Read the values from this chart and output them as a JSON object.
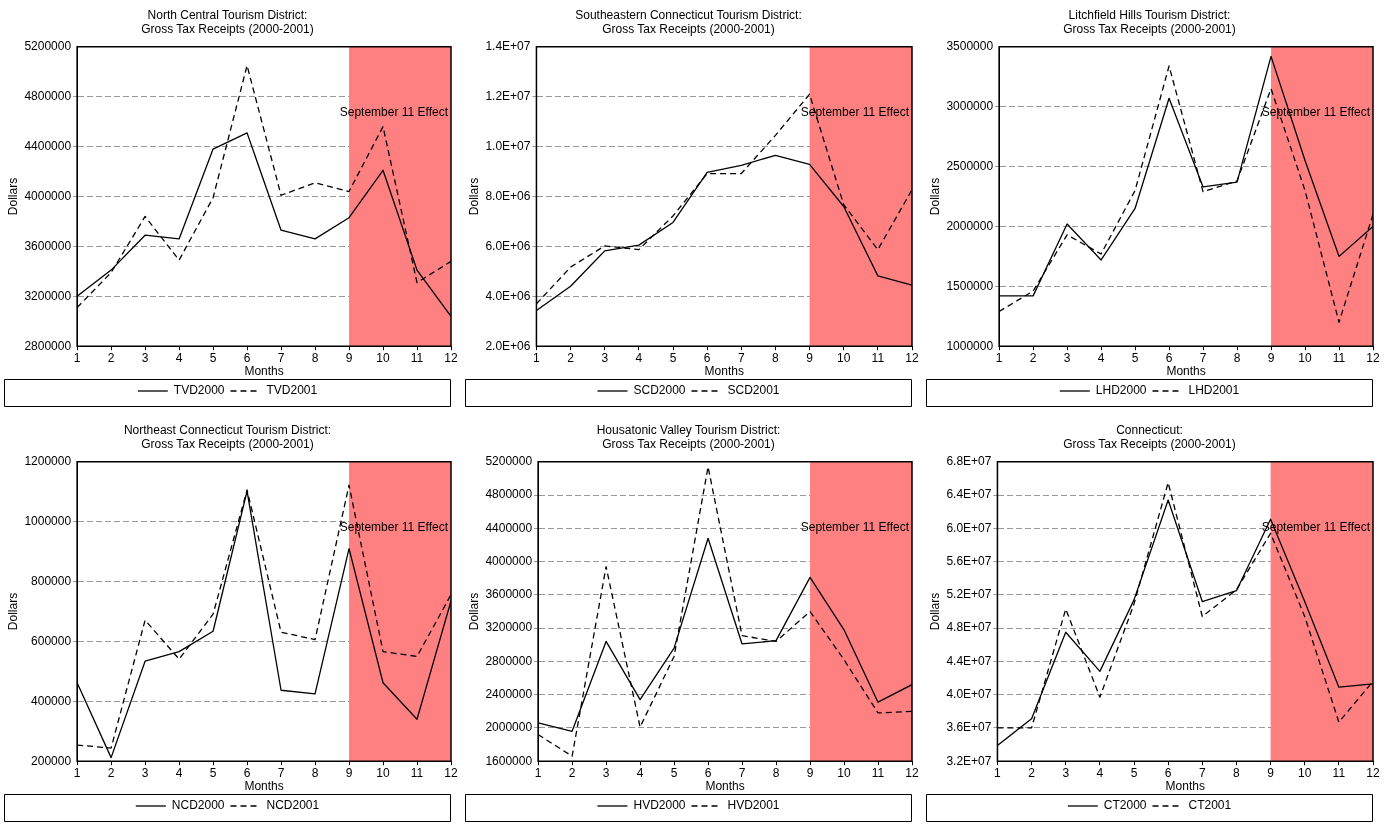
{
  "chart_data": [
    {
      "type": "line",
      "title": "North Central Tourism District:\nGross Tax Receipts (2000-2001)",
      "xlabel": "Months",
      "ylabel": "Dollars",
      "x": [
        1,
        2,
        3,
        4,
        5,
        6,
        7,
        8,
        9,
        10,
        11,
        12
      ],
      "xlim": [
        1,
        12
      ],
      "xticks": [
        1,
        2,
        3,
        4,
        5,
        6,
        7,
        8,
        9,
        10,
        11,
        12
      ],
      "ylim": [
        2800000,
        5200000
      ],
      "yticks": [
        2800000,
        3200000,
        3600000,
        4000000,
        4400000,
        4800000,
        5200000
      ],
      "grid": "y",
      "legend": "bottom",
      "bands": [
        {
          "axis": "x",
          "from": 9,
          "to": 12,
          "label": "September 11 Effect",
          "color": "#ff8080"
        }
      ],
      "series": [
        {
          "name": "TVD2000",
          "color": "#000000",
          "line_style": "solid",
          "values": [
            3200000,
            3410000,
            3690000,
            3660000,
            4380000,
            4510000,
            3730000,
            3660000,
            3830000,
            4210000,
            3410000,
            3040000
          ]
        },
        {
          "name": "TVD2001",
          "color": "#000000",
          "line_style": "dashed",
          "values": [
            3110000,
            3390000,
            3840000,
            3490000,
            3990000,
            5050000,
            4010000,
            4110000,
            4040000,
            4560000,
            3310000,
            3480000
          ]
        }
      ]
    },
    {
      "type": "line",
      "title": "Southeastern Connecticut Tourism District:\nGross Tax Receipts (2000-2001)",
      "xlabel": "Months",
      "ylabel": "Dollars",
      "x": [
        1,
        2,
        3,
        4,
        5,
        6,
        7,
        8,
        9,
        10,
        11,
        12
      ],
      "xlim": [
        1,
        12
      ],
      "xticks": [
        1,
        2,
        3,
        4,
        5,
        6,
        7,
        8,
        9,
        10,
        11,
        12
      ],
      "ylim": [
        2000000,
        14000000
      ],
      "yticks": [
        {
          "value": 2000000,
          "label": "2.0E+06"
        },
        {
          "value": 4000000,
          "label": "4.0E+06"
        },
        {
          "value": 6000000,
          "label": "6.0E+06"
        },
        {
          "value": 8000000,
          "label": "8.0E+06"
        },
        {
          "value": 10000000,
          "label": "1.0E+07"
        },
        {
          "value": 12000000,
          "label": "1.2E+07"
        },
        {
          "value": 14000000,
          "label": "1.4E+07"
        }
      ],
      "grid": "y",
      "legend": "bottom",
      "bands": [
        {
          "axis": "x",
          "from": 9,
          "to": 12,
          "label": "September 11 Effect",
          "color": "#ff8080"
        }
      ],
      "series": [
        {
          "name": "SCD2000",
          "color": "#000000",
          "line_style": "solid",
          "values": [
            3430000,
            4400000,
            5820000,
            6050000,
            6960000,
            8970000,
            9250000,
            9650000,
            9290000,
            7600000,
            4820000,
            4450000
          ]
        },
        {
          "name": "SCD2001",
          "color": "#000000",
          "line_style": "dashed",
          "values": [
            3700000,
            5170000,
            6020000,
            5870000,
            7220000,
            8920000,
            8920000,
            10450000,
            12100000,
            7670000,
            5870000,
            8270000
          ]
        }
      ]
    },
    {
      "type": "line",
      "title": "Litchfield Hills Tourism District:\nGross Tax Receipts (2000-2001)",
      "xlabel": "Months",
      "ylabel": "Dollars",
      "x": [
        1,
        2,
        3,
        4,
        5,
        6,
        7,
        8,
        9,
        10,
        11,
        12
      ],
      "xlim": [
        1,
        12
      ],
      "xticks": [
        1,
        2,
        3,
        4,
        5,
        6,
        7,
        8,
        9,
        10,
        11,
        12
      ],
      "ylim": [
        1000000,
        3500000
      ],
      "yticks": [
        1000000,
        1500000,
        2000000,
        2500000,
        3000000,
        3500000
      ],
      "grid": "y",
      "legend": "bottom",
      "bands": [
        {
          "axis": "x",
          "from": 9,
          "to": 12,
          "label": "September 11 Effect",
          "color": "#ff8080"
        }
      ],
      "series": [
        {
          "name": "LHD2000",
          "color": "#000000",
          "line_style": "solid",
          "values": [
            1420000,
            1420000,
            2020000,
            1720000,
            2150000,
            3070000,
            2330000,
            2370000,
            3420000,
            2550000,
            1750000,
            2000000
          ]
        },
        {
          "name": "LHD2001",
          "color": "#000000",
          "line_style": "dashed",
          "values": [
            1290000,
            1460000,
            1930000,
            1770000,
            2300000,
            3340000,
            2290000,
            2380000,
            3150000,
            2300000,
            1200000,
            2100000
          ]
        }
      ]
    },
    {
      "type": "line",
      "title": "Northeast Connecticut Tourism District:\nGross Tax Receipts (2000-2001)",
      "xlabel": "Months",
      "ylabel": "Dollars",
      "x": [
        1,
        2,
        3,
        4,
        5,
        6,
        7,
        8,
        9,
        10,
        11,
        12
      ],
      "xlim": [
        1,
        12
      ],
      "xticks": [
        1,
        2,
        3,
        4,
        5,
        6,
        7,
        8,
        9,
        10,
        11,
        12
      ],
      "ylim": [
        200000,
        1200000
      ],
      "yticks": [
        200000,
        400000,
        600000,
        800000,
        1000000,
        1200000
      ],
      "grid": "y",
      "legend": "bottom",
      "bands": [
        {
          "axis": "x",
          "from": 9,
          "to": 12,
          "label": "September 11 Effect",
          "color": "#ff8080"
        }
      ],
      "series": [
        {
          "name": "NCD2000",
          "color": "#000000",
          "line_style": "solid",
          "values": [
            462000,
            212000,
            534000,
            566000,
            634000,
            1102000,
            437000,
            425000,
            910000,
            462000,
            340000,
            735000
          ]
        },
        {
          "name": "NCD2001",
          "color": "#000000",
          "line_style": "dashed",
          "values": [
            254000,
            244000,
            671000,
            541000,
            691000,
            1106000,
            631000,
            606000,
            1122000,
            566000,
            550000,
            756000
          ]
        }
      ]
    },
    {
      "type": "line",
      "title": "Housatonic Valley Tourism District:\nGross Tax Receipts (2000-2001)",
      "xlabel": "Months",
      "ylabel": "Dollars",
      "x": [
        1,
        2,
        3,
        4,
        5,
        6,
        7,
        8,
        9,
        10,
        11,
        12
      ],
      "xlim": [
        1,
        12
      ],
      "xticks": [
        1,
        2,
        3,
        4,
        5,
        6,
        7,
        8,
        9,
        10,
        11,
        12
      ],
      "ylim": [
        1600000,
        5200000
      ],
      "yticks": [
        1600000,
        2000000,
        2400000,
        2800000,
        3200000,
        3600000,
        4000000,
        4400000,
        4800000,
        5200000
      ],
      "grid": "y",
      "legend": "bottom",
      "bands": [
        {
          "axis": "x",
          "from": 9,
          "to": 12,
          "label": "September 11 Effect",
          "color": "#ff8080"
        }
      ],
      "series": [
        {
          "name": "HVD2000",
          "color": "#000000",
          "line_style": "solid",
          "values": [
            2060000,
            1960000,
            3040000,
            2340000,
            2960000,
            4280000,
            3010000,
            3050000,
            3810000,
            3180000,
            2310000,
            2520000
          ]
        },
        {
          "name": "HVD2001",
          "color": "#000000",
          "line_style": "dashed",
          "values": [
            1920000,
            1660000,
            3940000,
            2010000,
            2860000,
            5140000,
            3110000,
            3040000,
            3400000,
            2820000,
            2180000,
            2200000
          ]
        }
      ]
    },
    {
      "type": "line",
      "title": "Connecticut:\nGross Tax Receipts (2000-2001)",
      "xlabel": "Months",
      "ylabel": "Dollars",
      "x": [
        1,
        2,
        3,
        4,
        5,
        6,
        7,
        8,
        9,
        10,
        11,
        12
      ],
      "xlim": [
        1,
        12
      ],
      "xticks": [
        1,
        2,
        3,
        4,
        5,
        6,
        7,
        8,
        9,
        10,
        11,
        12
      ],
      "ylim": [
        32000000,
        68000000
      ],
      "yticks": [
        {
          "value": 32000000,
          "label": "3.2E+07"
        },
        {
          "value": 36000000,
          "label": "3.6E+07"
        },
        {
          "value": 40000000,
          "label": "4.0E+07"
        },
        {
          "value": 44000000,
          "label": "4.4E+07"
        },
        {
          "value": 48000000,
          "label": "4.8E+07"
        },
        {
          "value": 52000000,
          "label": "5.2E+07"
        },
        {
          "value": 56000000,
          "label": "5.6E+07"
        },
        {
          "value": 60000000,
          "label": "6.0E+07"
        },
        {
          "value": 64000000,
          "label": "6.4E+07"
        },
        {
          "value": 68000000,
          "label": "6.8E+07"
        }
      ],
      "grid": "y",
      "legend": "bottom",
      "bands": [
        {
          "axis": "x",
          "from": 9,
          "to": 12,
          "label": "September 11 Effect",
          "color": "#ff8080"
        }
      ],
      "series": [
        {
          "name": "CT2000",
          "color": "#000000",
          "line_style": "solid",
          "values": [
            33900000,
            37100000,
            47500000,
            42800000,
            51400000,
            63400000,
            51200000,
            52500000,
            61100000,
            51200000,
            40900000,
            41300000
          ]
        },
        {
          "name": "CT2001",
          "color": "#000000",
          "line_style": "dashed",
          "values": [
            36000000,
            36000000,
            50300000,
            39700000,
            50900000,
            65500000,
            49400000,
            52600000,
            59400000,
            49400000,
            36700000,
            41600000
          ]
        }
      ]
    }
  ]
}
